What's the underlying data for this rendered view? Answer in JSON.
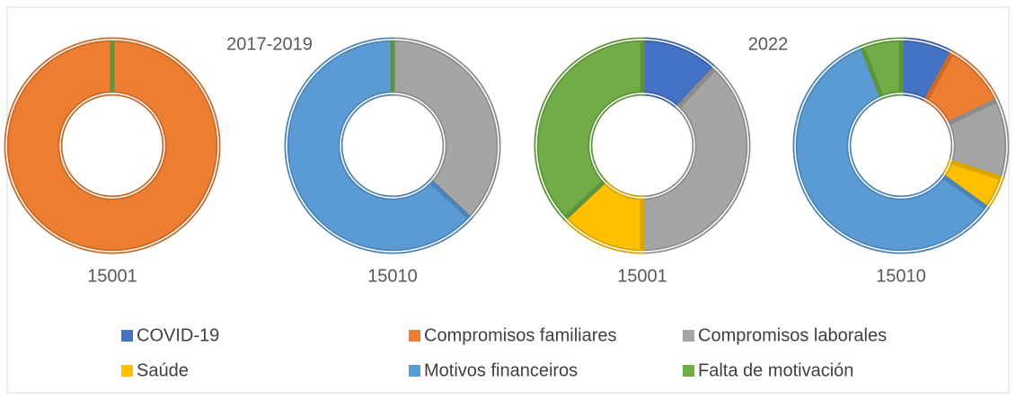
{
  "chart_data": {
    "type": "donut",
    "groups": [
      "2017-2019",
      "2022"
    ],
    "categories": [
      "15001",
      "15010",
      "15001",
      "15010"
    ],
    "series": [
      {
        "name": "COVID-19",
        "color": "#4472c4",
        "values": [
          0,
          0,
          12,
          8
        ]
      },
      {
        "name": "Compromisos familiares",
        "color": "#ed7d31",
        "values": [
          100,
          0,
          0,
          10
        ]
      },
      {
        "name": "Compromisos laborales",
        "color": "#a5a5a5",
        "values": [
          0,
          37,
          38,
          12
        ]
      },
      {
        "name": "Saúde",
        "color": "#ffc000",
        "values": [
          0,
          0,
          13,
          5
        ]
      },
      {
        "name": "Motivos financeiros",
        "color": "#5b9bd5",
        "values": [
          0,
          63,
          0,
          59
        ]
      },
      {
        "name": "Falta de motivación",
        "color": "#70ad47",
        "values": [
          0,
          0,
          37,
          6
        ]
      }
    ]
  }
}
